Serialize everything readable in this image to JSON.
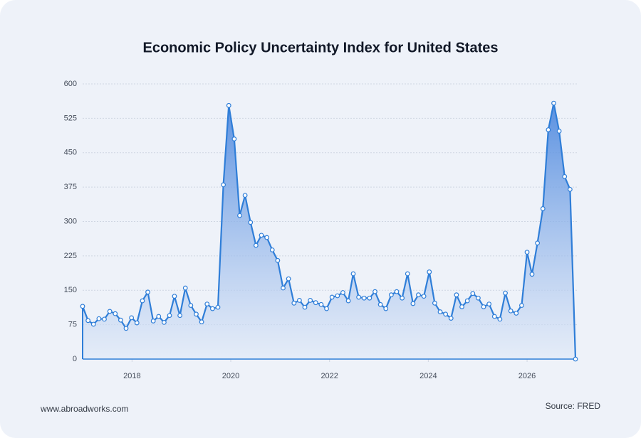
{
  "chart_data": {
    "type": "area",
    "title": "Economic Policy Uncertainty Index for United States",
    "x": [
      2017.0,
      2017.11,
      2017.22,
      2017.33,
      2017.44,
      2017.55,
      2017.66,
      2017.77,
      2017.88,
      2017.99,
      2018.1,
      2018.21,
      2018.32,
      2018.43,
      2018.54,
      2018.65,
      2018.76,
      2018.86,
      2018.97,
      2019.08,
      2019.19,
      2019.3,
      2019.41,
      2019.52,
      2019.63,
      2019.74,
      2019.85,
      2019.96,
      2020.07,
      2020.18,
      2020.29,
      2020.4,
      2020.51,
      2020.62,
      2020.73,
      2020.84,
      2020.95,
      2021.06,
      2021.17,
      2021.28,
      2021.39,
      2021.5,
      2021.61,
      2021.72,
      2021.83,
      2021.94,
      2022.05,
      2022.16,
      2022.27,
      2022.38,
      2022.48,
      2022.59,
      2022.7,
      2022.81,
      2022.92,
      2023.03,
      2023.14,
      2023.25,
      2023.36,
      2023.47,
      2023.58,
      2023.69,
      2023.8,
      2023.91,
      2024.02,
      2024.13,
      2024.24,
      2024.35,
      2024.46,
      2024.57,
      2024.68,
      2024.79,
      2024.9,
      2025.01,
      2025.12,
      2025.23,
      2025.34,
      2025.45,
      2025.56,
      2025.67,
      2025.78,
      2025.89,
      2026.0,
      2026.1,
      2026.21,
      2026.32,
      2026.43,
      2026.54,
      2026.65,
      2026.76,
      2026.87,
      2026.98
    ],
    "values": [
      115,
      84,
      76,
      88,
      87,
      104,
      99,
      85,
      67,
      90,
      79,
      127,
      146,
      83,
      93,
      80,
      95,
      137,
      95,
      155,
      117,
      98,
      81,
      120,
      110,
      113,
      380,
      553,
      480,
      313,
      357,
      298,
      248,
      270,
      265,
      238,
      215,
      155,
      175,
      122,
      128,
      113,
      128,
      123,
      119,
      110,
      135,
      138,
      145,
      127,
      186,
      135,
      133,
      133,
      147,
      119,
      110,
      140,
      147,
      133,
      186,
      121,
      140,
      137,
      190,
      122,
      103,
      98,
      89,
      140,
      114,
      127,
      143,
      133,
      114,
      120,
      93,
      87,
      144,
      105,
      100,
      117,
      233,
      185,
      253,
      328,
      500,
      558,
      497,
      398,
      370,
      0
    ],
    "color": "#2f7ed8",
    "xlim": [
      2017.0,
      2026.98
    ],
    "xticks": [
      2018,
      2020,
      2022,
      2024,
      2026
    ],
    "ylim": [
      0,
      600
    ],
    "yticks": [
      0,
      75,
      150,
      225,
      300,
      375,
      450,
      525,
      600
    ],
    "grid": true
  },
  "footer": {
    "website": "www.abroadworks.com",
    "source": "Source: FRED"
  }
}
